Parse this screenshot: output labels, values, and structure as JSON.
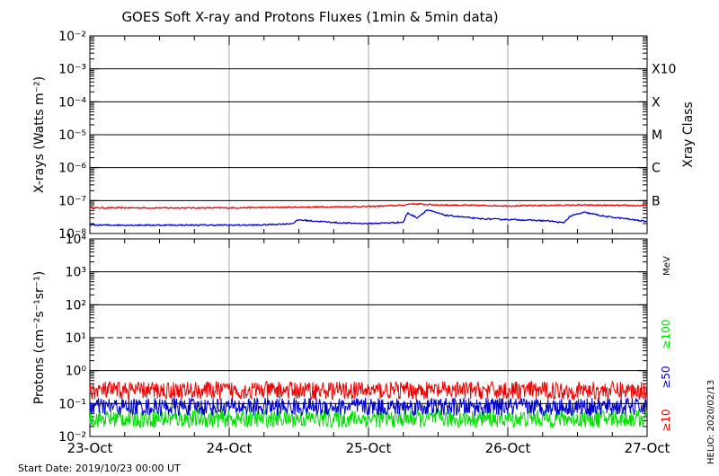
{
  "chart_data": {
    "type": "line",
    "title": "GOES Soft X-ray and Protons Fluxes   (1min & 5min data)",
    "footer_left": "Start Date: 2019/10/23 00:00 UT",
    "footer_right": "HELIO: 2020/02/13",
    "x_axis": {
      "ticks": [
        "23-Oct",
        "24-Oct",
        "25-Oct",
        "26-Oct",
        "27-Oct"
      ],
      "range_days": [
        0,
        4
      ]
    },
    "panels": [
      {
        "name": "xray",
        "ylabel": "X-rays (Watts m⁻²)",
        "yscale": "log",
        "ylim": [
          1e-08,
          0.01
        ],
        "ytick_labels": [
          "10⁻⁸",
          "10⁻⁷",
          "10⁻⁶",
          "10⁻⁵",
          "10⁻⁴",
          "10⁻³",
          "10⁻²"
        ],
        "right_axis_label": "Xray Class",
        "class_labels": [
          {
            "label": "B",
            "value": 1e-07
          },
          {
            "label": "C",
            "value": 1e-06
          },
          {
            "label": "M",
            "value": 1e-05
          },
          {
            "label": "X",
            "value": 0.0001
          },
          {
            "label": "X10",
            "value": 0.001
          }
        ],
        "series": [
          {
            "color": "#ee0000",
            "points": [
              [
                0,
                6e-08
              ],
              [
                0.5,
                6e-08
              ],
              [
                1.0,
                6e-08
              ],
              [
                1.5,
                6.3e-08
              ],
              [
                2.0,
                6.6e-08
              ],
              [
                2.25,
                7.2e-08
              ],
              [
                2.3,
                8e-08
              ],
              [
                2.5,
                7.4e-08
              ],
              [
                3.0,
                6.9e-08
              ],
              [
                3.5,
                7.3e-08
              ],
              [
                4.0,
                7e-08
              ]
            ]
          },
          {
            "color": "#0000cc",
            "points": [
              [
                0,
                1.8e-08
              ],
              [
                0.4,
                1.8e-08
              ],
              [
                0.8,
                1.8e-08
              ],
              [
                1.2,
                1.8e-08
              ],
              [
                1.45,
                2e-08
              ],
              [
                1.5,
                2.6e-08
              ],
              [
                1.6,
                2.4e-08
              ],
              [
                1.8,
                2.1e-08
              ],
              [
                2.0,
                2e-08
              ],
              [
                2.25,
                2.2e-08
              ],
              [
                2.28,
                4.2e-08
              ],
              [
                2.35,
                3e-08
              ],
              [
                2.42,
                5.2e-08
              ],
              [
                2.55,
                3.6e-08
              ],
              [
                2.8,
                2.8e-08
              ],
              [
                3.1,
                2.6e-08
              ],
              [
                3.3,
                2.4e-08
              ],
              [
                3.4,
                2.1e-08
              ],
              [
                3.45,
                3.4e-08
              ],
              [
                3.55,
                4.4e-08
              ],
              [
                3.7,
                3.3e-08
              ],
              [
                3.85,
                2.8e-08
              ],
              [
                4.0,
                2.3e-08
              ]
            ]
          }
        ]
      },
      {
        "name": "protons",
        "ylabel": "Protons (cm⁻²s⁻¹sr⁻¹)",
        "yscale": "log",
        "ylim": [
          0.01,
          10000
        ],
        "ytick_labels": [
          "10⁻²",
          "10⁻¹",
          "10⁰",
          "10¹",
          "10²",
          "10³",
          "10⁴"
        ],
        "threshold_value": 10,
        "unit_label": "MeV",
        "series": [
          {
            "name": "≥10",
            "color": "#ee0000",
            "level": 0.25
          },
          {
            "name": "≥50",
            "color": "#0000cc",
            "level": 0.08
          },
          {
            "name": "≥100",
            "color": "#00dd00",
            "level": 0.035
          }
        ]
      }
    ]
  }
}
